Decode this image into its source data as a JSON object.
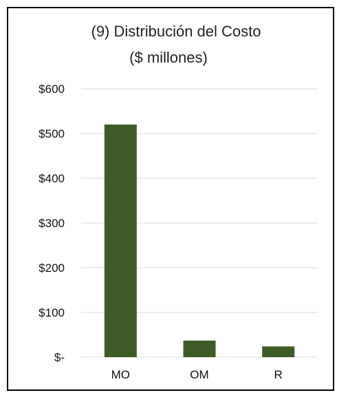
{
  "chart_data": {
    "type": "bar",
    "title_lines": [
      "(9) Distribución del Costo",
      "($ millones)"
    ],
    "categories": [
      "MO",
      "OM",
      "R"
    ],
    "values": [
      520,
      37,
      24
    ],
    "y_ticks": [
      0,
      100,
      200,
      300,
      400,
      500,
      600
    ],
    "y_tick_labels": [
      "$-",
      "$100",
      "$200",
      "$300",
      "$400",
      "$500",
      "$600"
    ],
    "ylim": [
      0,
      600
    ],
    "grid": true,
    "bar_color": "#3e5b26",
    "grid_color": "#d9d9d9"
  }
}
